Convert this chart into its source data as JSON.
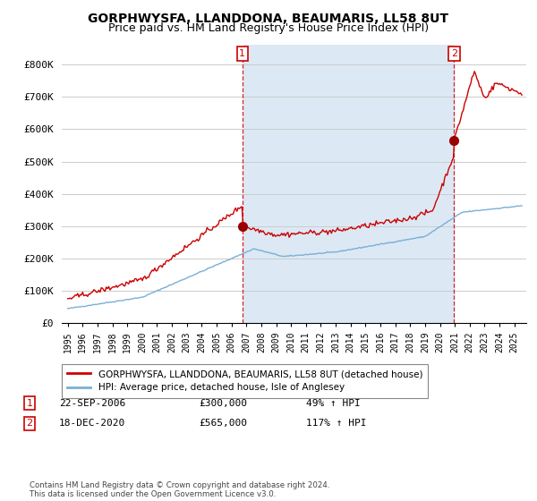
{
  "title": "GORPHWYSFA, LLANDDONA, BEAUMARIS, LL58 8UT",
  "subtitle": "Price paid vs. HM Land Registry's House Price Index (HPI)",
  "ylabel_ticks": [
    "£0",
    "£100K",
    "£200K",
    "£300K",
    "£400K",
    "£500K",
    "£600K",
    "£700K",
    "£800K"
  ],
  "ytick_values": [
    0,
    100000,
    200000,
    300000,
    400000,
    500000,
    600000,
    700000,
    800000
  ],
  "ylim": [
    0,
    860000
  ],
  "sale1_x": 2006.73,
  "sale1_y": 300000,
  "sale2_x": 2020.96,
  "sale2_y": 565000,
  "red_line_color": "#cc0000",
  "blue_line_color": "#7bafd4",
  "fill_color": "#dce9f5",
  "marker_color": "#990000",
  "background_color": "#ffffff",
  "grid_color": "#cccccc",
  "legend_label_red": "GORPHWYSFA, LLANDDONA, BEAUMARIS, LL58 8UT (detached house)",
  "legend_label_blue": "HPI: Average price, detached house, Isle of Anglesey",
  "annotation1_date": "22-SEP-2006",
  "annotation1_price": "£300,000",
  "annotation1_hpi": "49% ↑ HPI",
  "annotation2_date": "18-DEC-2020",
  "annotation2_price": "£565,000",
  "annotation2_hpi": "117% ↑ HPI",
  "footer": "Contains HM Land Registry data © Crown copyright and database right 2024.\nThis data is licensed under the Open Government Licence v3.0.",
  "title_fontsize": 10,
  "subtitle_fontsize": 9,
  "xlim_left": 1994.6,
  "xlim_right": 2025.8
}
